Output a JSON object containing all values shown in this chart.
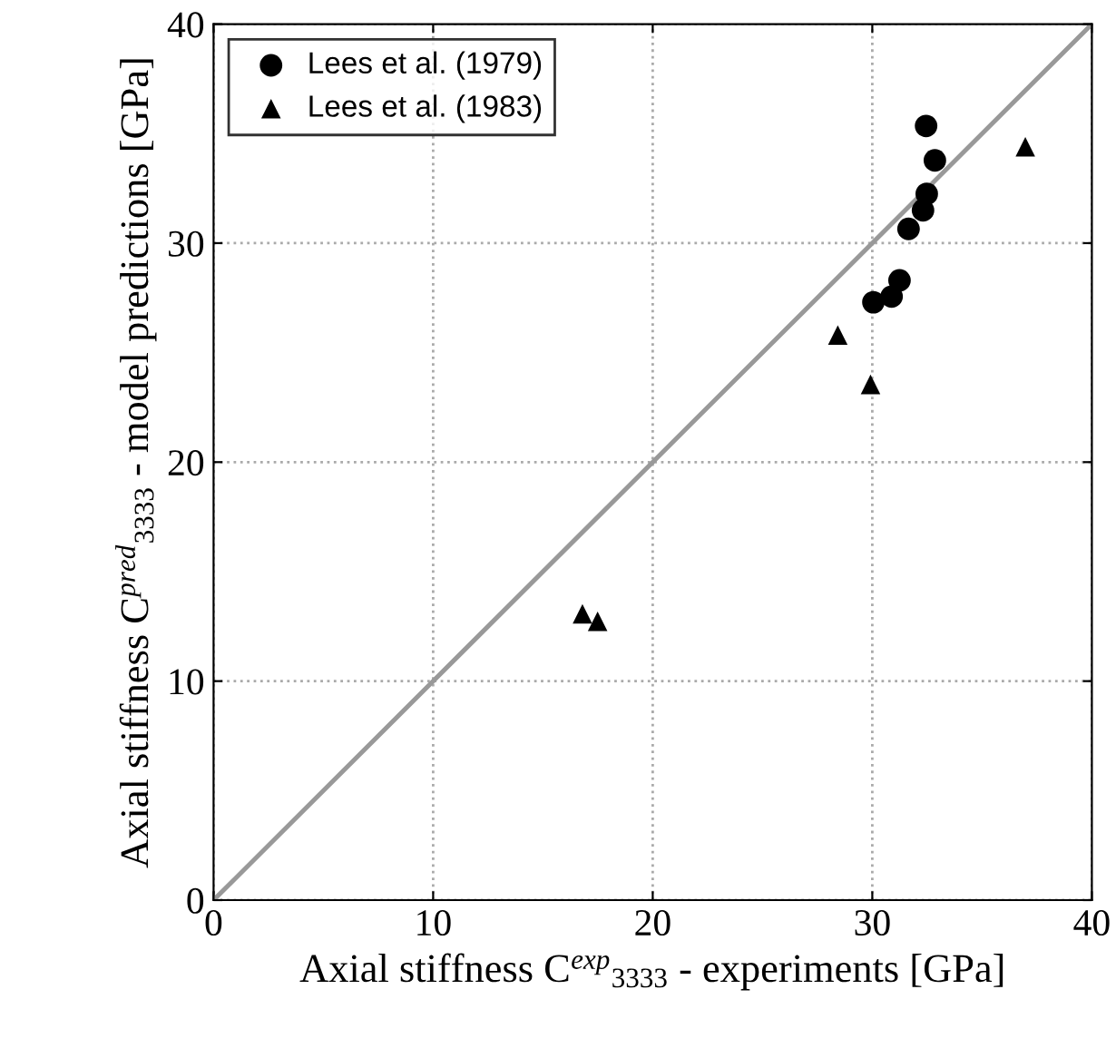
{
  "chart_data": {
    "type": "scatter",
    "xlabel": "Axial stiffness C$^{exp}$$_{3333}$ - experiments [GPa]",
    "ylabel": "Axial stiffness C$^{pred}$$_{3333}$ - model predictions [GPa]",
    "xlim": [
      0,
      40
    ],
    "ylim": [
      0,
      40
    ],
    "xticks": [
      0,
      10,
      20,
      30,
      40
    ],
    "yticks": [
      0,
      10,
      20,
      30,
      40
    ],
    "grid": true,
    "legend": "top left",
    "series": [
      {
        "name": "Lees et al. (1979)",
        "color": "#000000",
        "marker": "circle",
        "x": [
          32.45,
          32.85,
          32.48,
          32.31,
          31.65,
          31.24,
          30.88,
          30.05
        ],
        "values": [
          35.35,
          33.78,
          32.25,
          31.5,
          30.65,
          28.3,
          27.56,
          27.3
        ]
      },
      {
        "name": "Lees et al. (1983)",
        "color": "#000000",
        "marker": "triangle",
        "x": [
          36.97,
          28.43,
          29.92,
          16.8,
          17.49
        ],
        "values": [
          34.4,
          25.8,
          23.55,
          13.07,
          12.73
        ]
      },
      {
        "type": "line",
        "color": "#999999",
        "marker": "none",
        "line_style": "solid",
        "x": [
          0,
          40
        ],
        "values": [
          0,
          40
        ]
      }
    ]
  }
}
